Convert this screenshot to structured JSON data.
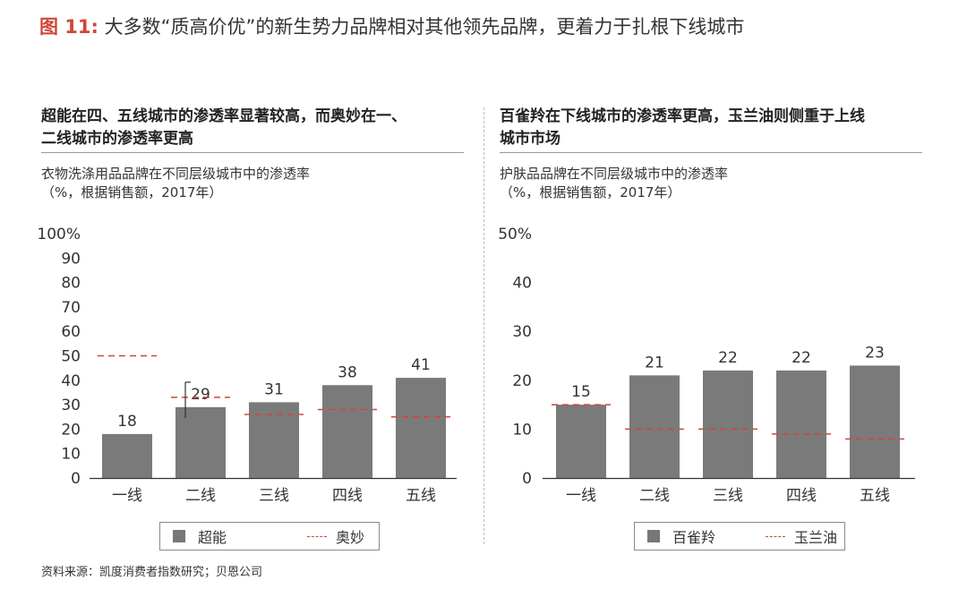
{
  "header": {
    "figure_no": "图 11:",
    "title": "大多数“质高价优”的新生势力品牌相对其他领先品牌，更着力于扎根下线城市"
  },
  "left_panel": {
    "heading_line1": "超能在四、五线城市的渗透率显著较高，而奥妙在一、",
    "heading_line2": "二线城市的渗透率更高",
    "sub_line1": "衣物洗涤用品品牌在不同层级城市中的渗透率",
    "sub_line2": "（%，根据销售额，2017年）",
    "legend": {
      "bar_label": "超能",
      "line_label": "奥妙"
    }
  },
  "right_panel": {
    "heading_line1": "百雀羚在下线城市的渗透率更高，玉兰油则侧重于上线",
    "heading_line2": "城市市场",
    "sub_line1": "护肤品品牌在不同层级城市中的渗透率",
    "sub_line2": "（%，根据销售额，2017年）",
    "legend": {
      "bar_label": "百雀羚",
      "line_label": "玉兰油"
    }
  },
  "source": "资料来源：凯度消费者指数研究；贝恩公司",
  "colors": {
    "bar": "#7a7a7a",
    "dash": "#d0463a",
    "title_accent": "#d0463a",
    "axis": "#333333"
  },
  "chart_data": [
    {
      "type": "bar",
      "categories": [
        "一线",
        "二线",
        "三线",
        "四线",
        "五线"
      ],
      "series": [
        {
          "name": "超能",
          "kind": "bar",
          "values": [
            18,
            29,
            31,
            38,
            41
          ]
        },
        {
          "name": "奥妙",
          "kind": "dashed-line",
          "values": [
            50,
            33,
            26,
            28,
            25
          ]
        }
      ],
      "ylim": [
        0,
        100
      ],
      "yticks": [
        "0",
        "10",
        "20",
        "30",
        "40",
        "50",
        "60",
        "70",
        "80",
        "90",
        "100%"
      ],
      "ytick_values": [
        0,
        10,
        20,
        30,
        40,
        50,
        60,
        70,
        80,
        90,
        100
      ],
      "bar_value_labels": [
        "18",
        "29",
        "31",
        "38",
        "41"
      ],
      "grid": false,
      "legend_position": "bottom"
    },
    {
      "type": "bar",
      "categories": [
        "一线",
        "二线",
        "三线",
        "四线",
        "五线"
      ],
      "series": [
        {
          "name": "百雀羚",
          "kind": "bar",
          "values": [
            15,
            21,
            22,
            22,
            23
          ]
        },
        {
          "name": "玉兰油",
          "kind": "dashed-line",
          "values": [
            15,
            10,
            10,
            9,
            8
          ]
        }
      ],
      "ylim": [
        0,
        50
      ],
      "yticks": [
        "0",
        "10",
        "20",
        "30",
        "40",
        "50%"
      ],
      "ytick_values": [
        0,
        10,
        20,
        30,
        40,
        50
      ],
      "bar_value_labels": [
        "15",
        "21",
        "22",
        "22",
        "23"
      ],
      "grid": false,
      "legend_position": "bottom"
    }
  ]
}
